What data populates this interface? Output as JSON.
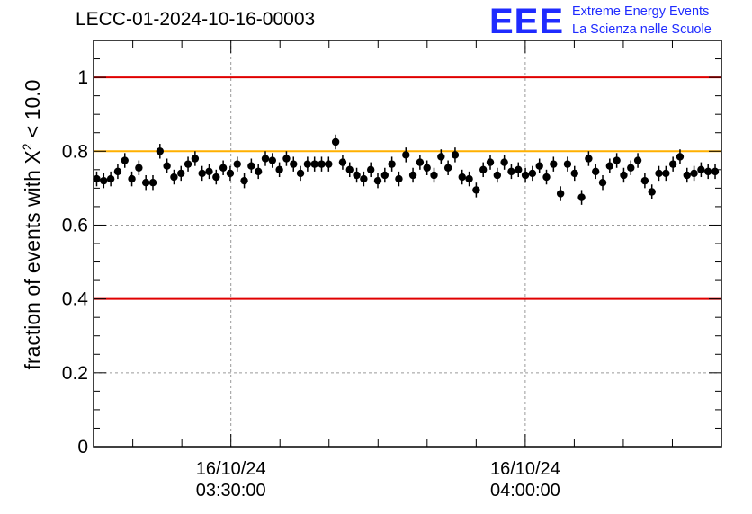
{
  "chart_data": {
    "type": "scatter",
    "title": "LECC-01-2024-10-16-00003",
    "ylabel_prefix": "fraction of events with ",
    "ylabel_symbol": "X",
    "ylabel_power": "2",
    "ylabel_suffix": " < 10.0",
    "logo": {
      "mark": "EEE",
      "line1": "Extreme Energy Events",
      "line2": "La Scienza nelle Scuole"
    },
    "ylim": [
      0,
      1.1
    ],
    "yticks": [
      0,
      0.2,
      0.4,
      0.6,
      0.8,
      1
    ],
    "ytick_labels": [
      "0",
      "0.2",
      "0.4",
      "0.6",
      "0.8",
      "1"
    ],
    "xlim": [
      "2024-10-16 03:16:00",
      "2024-10-16 04:20:00"
    ],
    "xtick_labels": [
      {
        "date": "16/10/24",
        "time": "03:30:00"
      },
      {
        "date": "16/10/24",
        "time": "04:00:00"
      }
    ],
    "xtick_times": [
      "2024-10-16 03:30:00",
      "2024-10-16 04:00:00"
    ],
    "grid": true,
    "reference_lines": [
      {
        "y": 1.0,
        "color": "#e00000"
      },
      {
        "y": 0.4,
        "color": "#e00000"
      },
      {
        "y": 0.8,
        "color": "#ffb000"
      }
    ],
    "marker_color": "#000000",
    "y_error": 0.02,
    "y": [
      0.725,
      0.72,
      0.725,
      0.745,
      0.775,
      0.725,
      0.755,
      0.715,
      0.715,
      0.8,
      0.76,
      0.73,
      0.74,
      0.765,
      0.78,
      0.74,
      0.745,
      0.73,
      0.755,
      0.74,
      0.765,
      0.72,
      0.76,
      0.745,
      0.78,
      0.775,
      0.75,
      0.78,
      0.765,
      0.74,
      0.765,
      0.765,
      0.765,
      0.765,
      0.825,
      0.77,
      0.75,
      0.735,
      0.725,
      0.75,
      0.72,
      0.735,
      0.765,
      0.725,
      0.79,
      0.735,
      0.77,
      0.755,
      0.735,
      0.785,
      0.755,
      0.79,
      0.73,
      0.725,
      0.695,
      0.75,
      0.77,
      0.735,
      0.77,
      0.745,
      0.75,
      0.735,
      0.74,
      0.76,
      0.73,
      0.765,
      0.685,
      0.765,
      0.74,
      0.675,
      0.78,
      0.745,
      0.715,
      0.76,
      0.775,
      0.735,
      0.755,
      0.775,
      0.72,
      0.69,
      0.74,
      0.74,
      0.765,
      0.785,
      0.735,
      0.74,
      0.75,
      0.745,
      0.745
    ]
  }
}
